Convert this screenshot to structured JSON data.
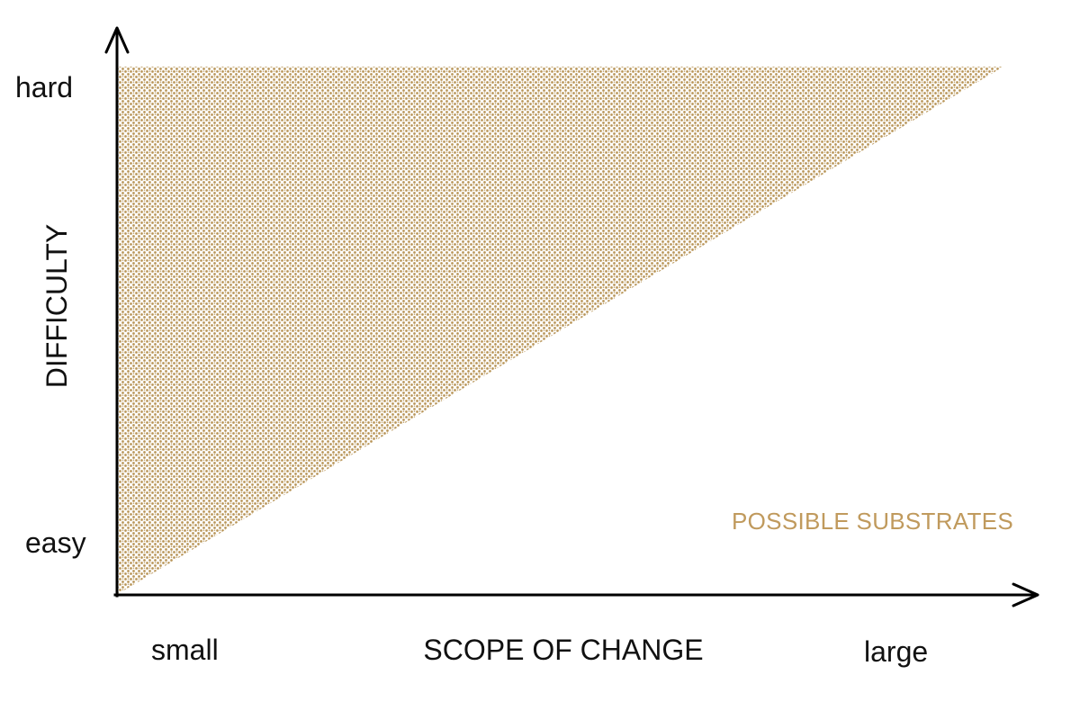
{
  "axes": {
    "y_title": "DIFFICULTY",
    "y_top_label": "hard",
    "y_bottom_label": "easy",
    "x_title": "SCOPE OF CHANGE",
    "x_left_label": "small",
    "x_right_label": "large"
  },
  "region": {
    "label": "POSSIBLE SUBSTRATES",
    "fill_color": "#b89456",
    "label_color": "#c09a5d",
    "pattern": "stippled"
  },
  "colors": {
    "axis": "#000000",
    "text": "#111111",
    "background": "#ffffff"
  }
}
